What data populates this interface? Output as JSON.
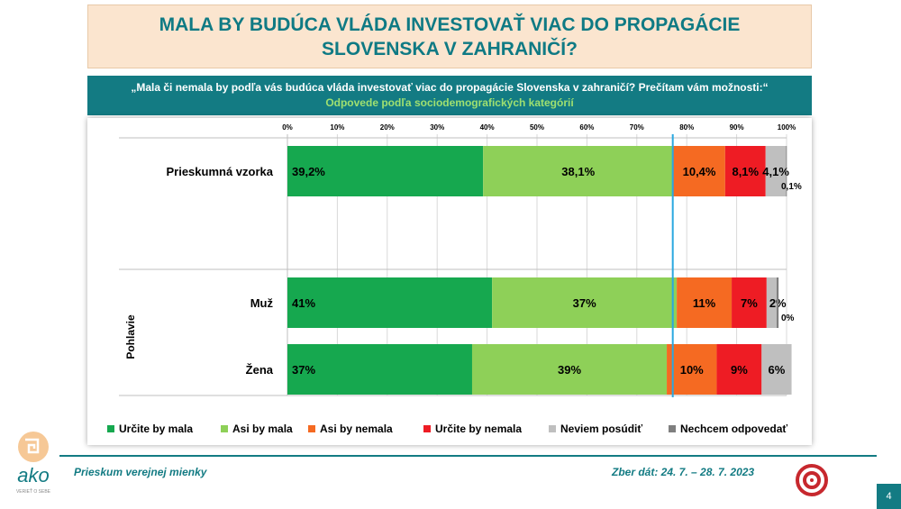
{
  "title": "MALA BY BUDÚCA VLÁDA INVESTOVAŤ VIAC DO PROPAGÁCIE SLOVENSKA V ZAHRANIČÍ?",
  "question": "„Mala či nemala by podľa vás budúca vláda investovať viac do propagácie Slovenska v zahraničí? Prečítam vám možnosti:“",
  "subtitle": "Odpovede podľa sociodemografických kategórií",
  "footer": {
    "left": "Prieskum verejnej mienky",
    "right": "Zber dát: 24. 7. – 28. 7. 2023",
    "page": "4"
  },
  "logo": {
    "brand": "ako",
    "tagline": "VERIEŤ O SEBE"
  },
  "chart_data": {
    "type": "bar",
    "orientation": "horizontal-stacked-100",
    "x_ticks": [
      "0%",
      "10%",
      "20%",
      "30%",
      "40%",
      "50%",
      "60%",
      "70%",
      "80%",
      "90%",
      "100%"
    ],
    "xlim": [
      0,
      100
    ],
    "reference_line": 77.2,
    "group_label": "Pohlavie",
    "categories": [
      "Prieskumná vzorka",
      "Muž",
      "Žena"
    ],
    "series": [
      {
        "name": "Určite by mala",
        "color": "#16a84f",
        "values": [
          39.2,
          41,
          37
        ],
        "labels": [
          "39,2%",
          "41%",
          "37%"
        ]
      },
      {
        "name": "Asi by mala",
        "color": "#8ed058",
        "values": [
          38.1,
          37,
          39
        ],
        "labels": [
          "38,1%",
          "37%",
          "39%"
        ]
      },
      {
        "name": "Asi by nemala",
        "color": "#f56a22",
        "values": [
          10.4,
          11,
          10
        ],
        "labels": [
          "10,4%",
          "11%",
          "10%"
        ]
      },
      {
        "name": "Určite by nemala",
        "color": "#ee1c24",
        "values": [
          8.1,
          7,
          9
        ],
        "labels": [
          "8,1%",
          "7%",
          "9%"
        ]
      },
      {
        "name": "Neviem posúdiť",
        "color": "#bfbfbf",
        "values": [
          4.1,
          2,
          6
        ],
        "labels": [
          "4,1%",
          "2%",
          "6%"
        ]
      },
      {
        "name": "Nechcem odpovedať",
        "color": "#7f7f7f",
        "values": [
          0.1,
          0.4,
          0
        ],
        "labels": [
          "0,1%",
          "0%",
          ""
        ]
      }
    ]
  }
}
